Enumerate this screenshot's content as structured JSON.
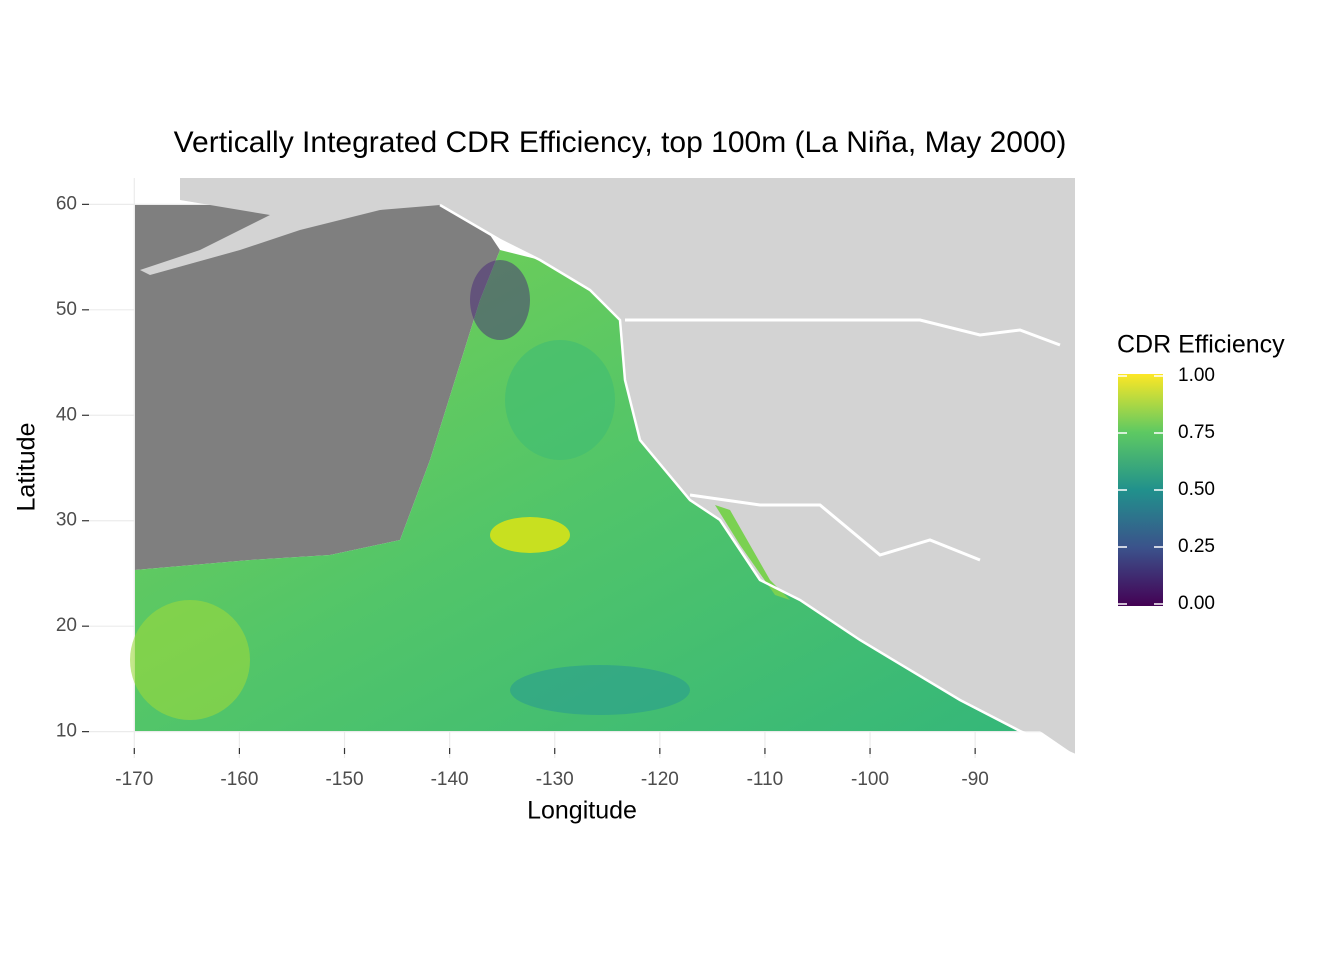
{
  "chart_data": {
    "type": "map",
    "title": "Vertically Integrated CDR Efficiency, top 100m (La Niña, May 2000)",
    "x_label": "Longitude",
    "y_label": "Latitude",
    "xlim": [
      -174.5,
      -80.5
    ],
    "ylim": [
      7.5,
      62.5
    ],
    "xticks": [
      -170,
      -160,
      -150,
      -140,
      -130,
      -120,
      -110,
      -100,
      -90
    ],
    "yticks": [
      10,
      20,
      30,
      40,
      50,
      60
    ],
    "grid": true,
    "legend": {
      "title": "CDR Efficiency",
      "lim": [
        0,
        1
      ],
      "ticks": [
        {
          "value": 0,
          "label": "0.00"
        },
        {
          "value": 0.25,
          "label": "0.25"
        },
        {
          "value": 0.5,
          "label": "0.50"
        },
        {
          "value": 0.75,
          "label": "0.75"
        },
        {
          "value": 1,
          "label": "1.00"
        }
      ],
      "colors": [
        "#440154",
        "#3b528b",
        "#21918c",
        "#5ec962",
        "#fde725"
      ]
    }
  }
}
